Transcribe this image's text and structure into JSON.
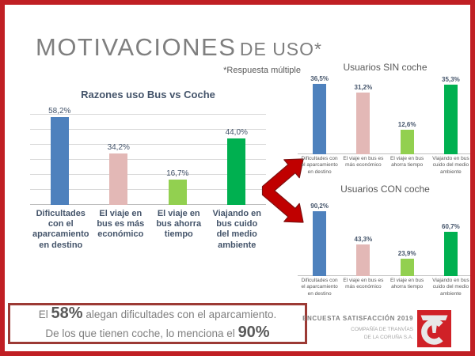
{
  "slide": {
    "title_main": "MOTIVACIONES",
    "title_sub": "DE USO*",
    "footnote": "*Respuesta múltiple"
  },
  "chart_data": [
    {
      "type": "bar",
      "title": "Razones uso Bus vs Coche",
      "categories": [
        "Dificultades con el aparcamiento en destino",
        "El viaje en bus es más económico",
        "El viaje en bus ahorra tiempo",
        "Viajando en bus cuido del medio ambiente"
      ],
      "values": [
        58.2,
        34.2,
        16.7,
        44.0
      ],
      "labels": [
        "58,2%",
        "34,2%",
        "16,7%",
        "44,0%"
      ],
      "ylim": [
        0,
        65
      ],
      "grid": true,
      "grid_step": 10,
      "xlabel": "",
      "ylabel": ""
    },
    {
      "type": "bar",
      "title": "Usuarios SIN coche",
      "categories": [
        "Dificultades con el aparcamiento en destino",
        "El viaje en bus es más económico",
        "El viaje en bus ahorra tiempo",
        "Viajando en bus cuido del medio ambiente"
      ],
      "values": [
        36.5,
        31.2,
        12.6,
        35.3
      ],
      "labels": [
        "36,5%",
        "31,2%",
        "12,6%",
        "35,3%"
      ],
      "ylim": [
        0,
        40
      ],
      "grid": false,
      "xlabel": "",
      "ylabel": ""
    },
    {
      "type": "bar",
      "title": "Usuarios CON coche",
      "categories": [
        "Dificultades con el aparcamiento en destino",
        "El viaje en bus es más económico",
        "El viaje en bus ahorra tiempo",
        "Viajando en bus cuido del medio ambiente"
      ],
      "values": [
        90.2,
        43.3,
        23.9,
        60.7
      ],
      "labels": [
        "90,2%",
        "43,3%",
        "23,9%",
        "60,7%"
      ],
      "ylim": [
        0,
        100
      ],
      "grid": false,
      "xlabel": "",
      "ylabel": ""
    }
  ],
  "highlight_box": {
    "l1_pre": "El ",
    "l1_big": "58%",
    "l1_post": " alegan dificultades con el aparcamiento.",
    "l2_pre": "De los que tienen coche, lo menciona el ",
    "l2_big": "90%"
  },
  "footer": {
    "survey": "ENCUESTA SATISFACCIÓN 2019",
    "company_line1": "COMPAÑÍA DE TRANVÍAS",
    "company_line2": "DE LA CORUÑA S.A.",
    "logo_name": "tranvias-coruna-logo"
  },
  "colors": {
    "slide_border": "#C01F24",
    "bar_palette": [
      "#4E81BD",
      "#E3B8B6",
      "#92D050",
      "#00B050"
    ],
    "arrow_red": "#C00000",
    "arrow_outline": "#7F1010",
    "box_border": "#9C3A35",
    "title_gray": "#7F7F7F",
    "chart_text_navy": "#44546A",
    "chart_text_gray": "#595959",
    "logo_red": "#D02127"
  }
}
